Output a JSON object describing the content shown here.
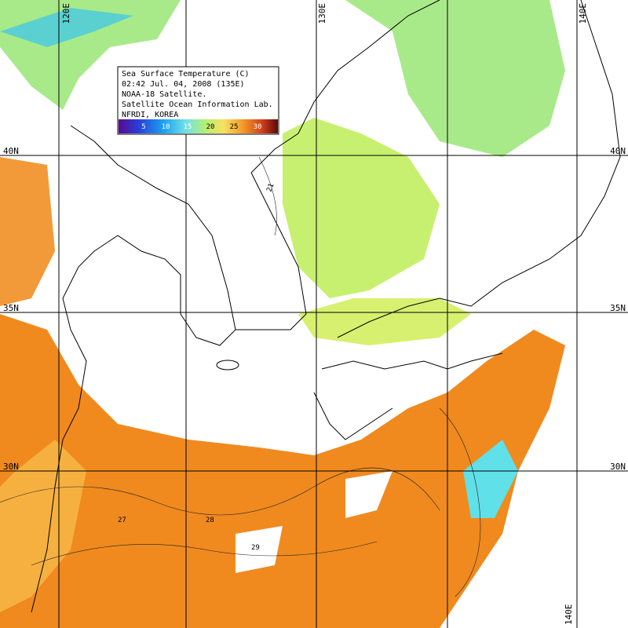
{
  "legend": {
    "lines": [
      "Sea Surface Temperature (C)",
      "02:42 Jul. 04, 2008 (135E)",
      "NOAA-18 Satellite.",
      "Satellite Ocean Information Lab.",
      "NFRDI, KOREA"
    ],
    "colorbar_ticks": [
      "5",
      "10",
      "15",
      "20",
      "25",
      "30"
    ]
  },
  "grid_labels": {
    "longitudes": [
      "120E",
      "130E",
      "140E"
    ],
    "latitudes": [
      "40N",
      "35N",
      "30N"
    ]
  },
  "contour_labels": [
    "21",
    "27",
    "28",
    "29"
  ]
}
